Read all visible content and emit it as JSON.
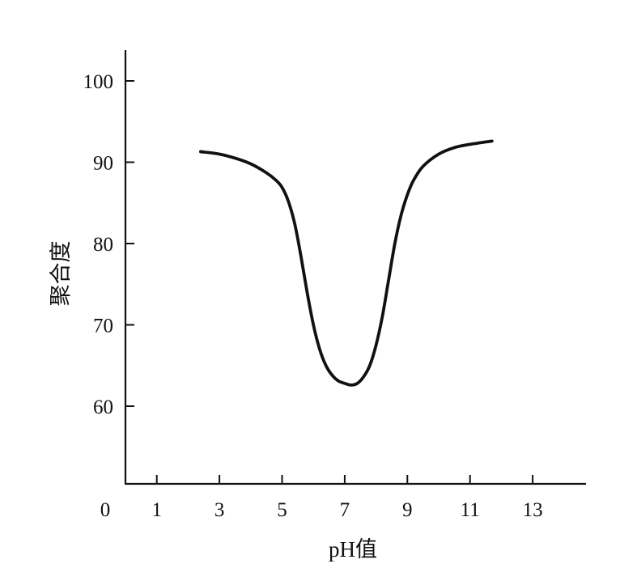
{
  "chart_data": {
    "type": "line",
    "title": "",
    "xlabel": "pH值",
    "ylabel": "聚合度",
    "origin_label": "0",
    "xlim": [
      0,
      14.7
    ],
    "ylim": [
      50,
      104
    ],
    "x_ticks": [
      1,
      3,
      5,
      7,
      9,
      11,
      13
    ],
    "x_tick_labels": [
      "1",
      "3",
      "5",
      "7",
      "9",
      "11",
      "13"
    ],
    "y_ticks": [
      60,
      70,
      80,
      90,
      100
    ],
    "y_tick_labels": [
      "60",
      "70",
      "80",
      "90",
      "100"
    ],
    "grid": false,
    "legend": "none",
    "series": [
      {
        "x": [
          2.4,
          3.0,
          3.5,
          4.0,
          4.5,
          4.8,
          5.0,
          5.2,
          5.4,
          5.6,
          5.8,
          6.0,
          6.2,
          6.4,
          6.6,
          6.8,
          7.0,
          7.2,
          7.4,
          7.6,
          7.8,
          8.0,
          8.2,
          8.4,
          8.6,
          8.8,
          9.0,
          9.2,
          9.5,
          10.0,
          10.5,
          11.0,
          11.7
        ],
        "y": [
          91.3,
          91.0,
          90.5,
          89.8,
          88.7,
          87.8,
          86.9,
          85.2,
          82.5,
          78.5,
          74.0,
          70.0,
          67.0,
          65.0,
          63.8,
          63.1,
          62.8,
          62.6,
          62.8,
          63.6,
          65.0,
          67.5,
          71.0,
          75.5,
          80.0,
          83.5,
          86.0,
          87.8,
          89.5,
          91.0,
          91.8,
          92.2,
          92.6
        ],
        "color": "#111111"
      }
    ]
  }
}
